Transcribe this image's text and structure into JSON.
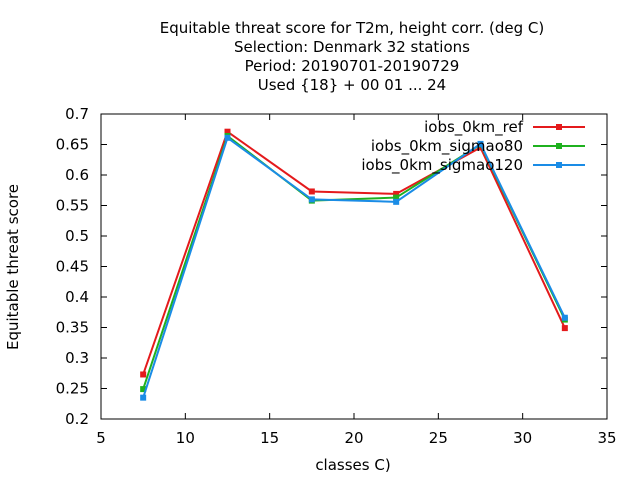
{
  "chart_data": {
    "type": "line",
    "title_lines": [
      "Equitable threat score  for T2m, height corr. (deg C)",
      "Selection: Denmark     32 stations",
      "Period: 20190701-20190729",
      "Used {18} + 00 01 ... 24"
    ],
    "xlabel": "classes C)",
    "ylabel": "Equitable threat score",
    "xlim": [
      5,
      35
    ],
    "ylim": [
      0.2,
      0.7
    ],
    "xticks": [
      "5",
      "10",
      "15",
      "20",
      "25",
      "30",
      "35"
    ],
    "yticks": [
      "0.2",
      "0.25",
      "0.3",
      "0.35",
      "0.4",
      "0.45",
      "0.5",
      "0.55",
      "0.6",
      "0.65",
      "0.7"
    ],
    "x": [
      7.5,
      12.5,
      17.5,
      22.5,
      27.5,
      32.5
    ],
    "series": [
      {
        "name": "iobs_0km_ref",
        "color": "#e41a1c",
        "values": [
          0.273,
          0.671,
          0.573,
          0.569,
          0.645,
          0.349
        ]
      },
      {
        "name": "iobs_0km_sigmao80",
        "color": "#1fb11f",
        "values": [
          0.249,
          0.664,
          0.558,
          0.563,
          0.65,
          0.363
        ]
      },
      {
        "name": "iobs_0km_sigmao120",
        "color": "#1a8ce6",
        "values": [
          0.235,
          0.661,
          0.56,
          0.556,
          0.651,
          0.366
        ]
      }
    ],
    "legend_position": "top-right",
    "grid": false
  }
}
